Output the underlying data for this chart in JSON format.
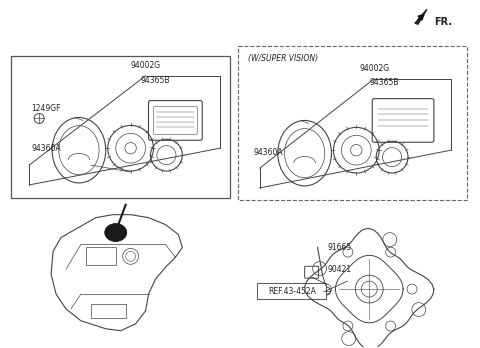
{
  "bg_color": "#ffffff",
  "line_color": "#444444",
  "text_color": "#222222",
  "fr_label": "FR.",
  "super_vision_label": "(W/SUPER VISION)",
  "labels": {
    "94002G_left": "94002G",
    "94365B_left": "94365B",
    "94360A_left": "94360A",
    "1249GF": "1249GF",
    "94002G_right": "94002G",
    "94365B_right": "94365B",
    "94360A_right": "94360A",
    "91665": "91665",
    "90421": "90421",
    "ref": "REF.43-452A"
  },
  "fig_width": 4.8,
  "fig_height": 3.48,
  "dpi": 100
}
